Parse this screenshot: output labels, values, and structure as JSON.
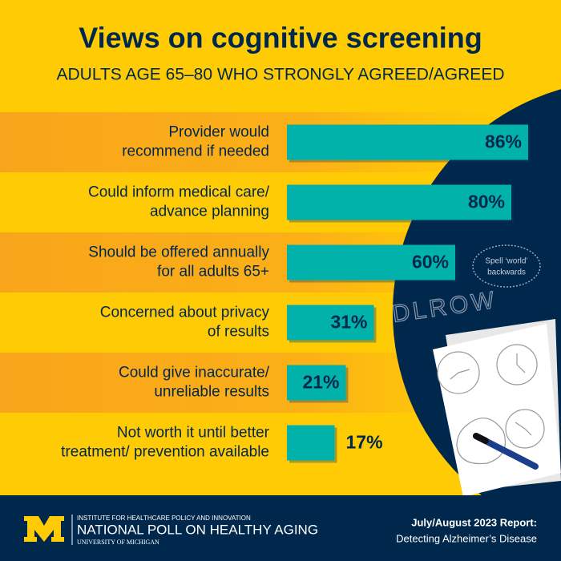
{
  "chart_data": {
    "type": "hbar",
    "title": "Views on cognitive screening",
    "subtitle": "ADULTS AGE 65–80 WHO STRONGLY AGREED/AGREED",
    "categories": [
      [
        "Provider would",
        "recommend if needed"
      ],
      [
        "Could inform medical care/",
        "advance planning"
      ],
      [
        "Should be offered annually",
        "for all adults 65+"
      ],
      [
        "Concerned about privacy",
        "of results"
      ],
      [
        "Could give inaccurate/",
        "unreliable results"
      ],
      [
        "Not worth it until better",
        "treatment/ prevention available"
      ]
    ],
    "values": [
      86,
      80,
      60,
      31,
      21,
      17
    ],
    "value_labels": [
      "86%",
      "80%",
      "60%",
      "31%",
      "21%",
      "17%"
    ],
    "color": "#00b2a9",
    "annotations": {
      "bubble": [
        "Spell ‘world’",
        "backwards"
      ],
      "handwriting": "DLROW"
    }
  },
  "footer": {
    "institute": "INSTITUTE FOR HEALTHCARE POLICY AND INNOVATION",
    "poll": "NATIONAL POLL ON HEALTHY AGING",
    "university": "UNIVERSITY OF MICHIGAN",
    "report": "July/August 2023 Report:",
    "report_title": "Detecting Alzheimer’s Disease"
  }
}
